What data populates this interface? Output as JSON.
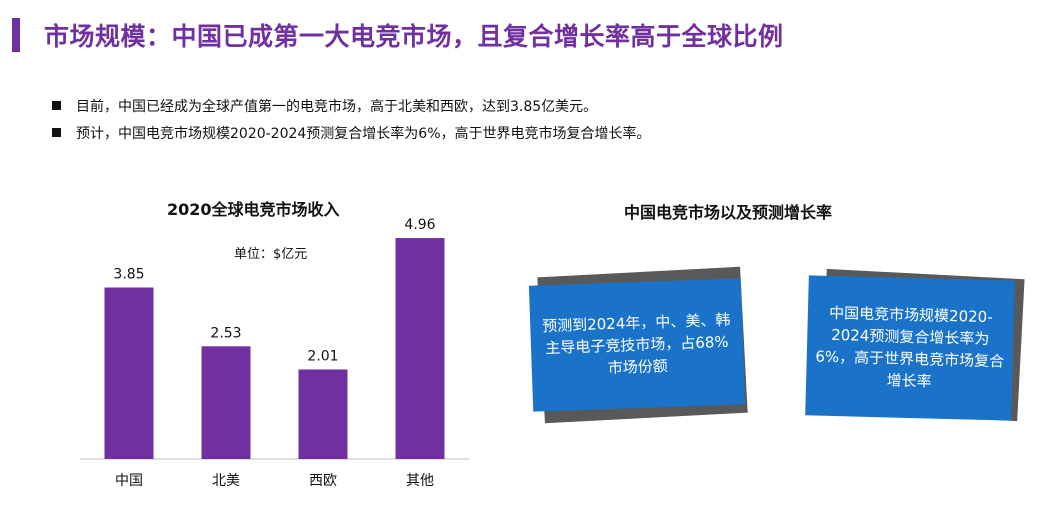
{
  "header": {
    "title": "市场规模：中国已成第一大电竞市场，且复合增长率高于全球比例"
  },
  "bullets": [
    "目前，中国已经成为全球产值第一的电竞市场，高于北美和西欧，达到3.85亿美元。",
    "预计，中国电竞市场规模2020-2024预测复合增长率为6%，高于世界电竞市场复合增长率。"
  ],
  "chart_data": {
    "type": "bar",
    "title": "2020全球电竞市场收入",
    "unit_note": "单位：$亿元",
    "categories": [
      "中国",
      "北美",
      "西欧",
      "其他"
    ],
    "values": [
      3.85,
      2.53,
      2.01,
      4.96
    ],
    "value_labels": [
      "3.85",
      "2.53",
      "2.01",
      "4.96"
    ],
    "bar_color": "#7030a0",
    "ylim": [
      0,
      5.5
    ],
    "grid": false,
    "legend": "none"
  },
  "right_panel": {
    "title": "中国电竞市场以及预测增长率",
    "card1_text": "预测到2024年，中、美、韩主导电子竞技市场，占68%市场份额",
    "card2_text": "中国电竞市场规模2020-2024预测复合增长率为6%，高于世界电竞市场复合增长率"
  },
  "colors": {
    "accent": "#7030a0",
    "card_blue": "#1a73c8",
    "card_shadow": "#595959"
  }
}
